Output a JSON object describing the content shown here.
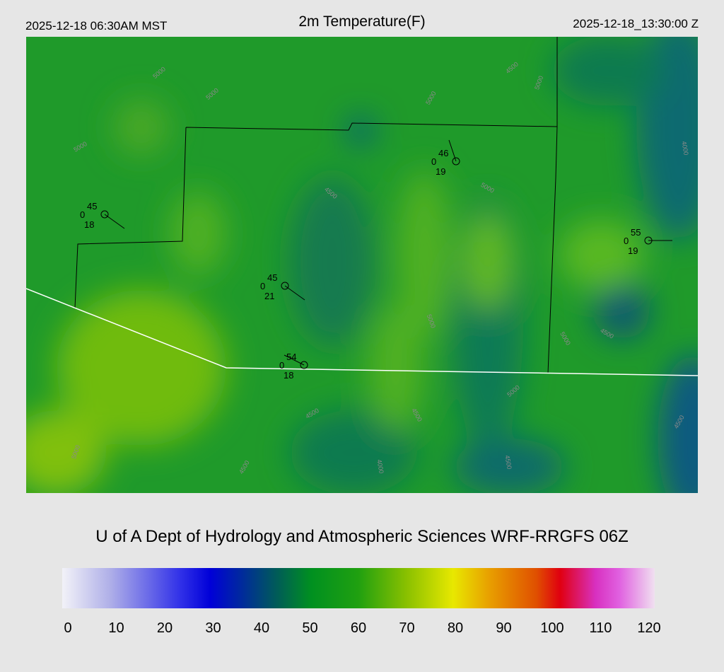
{
  "header": {
    "left": "2025-12-18 06:30AM MST",
    "title": "2m Temperature(F)",
    "right": "2025-12-18_13:30:00 Z"
  },
  "stations": [
    {
      "temperature": "45",
      "pressure": "0",
      "dewpoint": "18"
    },
    {
      "temperature": "45",
      "pressure": "0",
      "dewpoint": "21"
    },
    {
      "temperature": "54",
      "pressure": "0",
      "dewpoint": "18"
    },
    {
      "temperature": "46",
      "pressure": "0",
      "dewpoint": "19"
    },
    {
      "temperature": "55",
      "pressure": "0",
      "dewpoint": "19"
    }
  ],
  "contour_labels": [
    "5000",
    "5000",
    "5000",
    "4500",
    "5000",
    "5000",
    "4500",
    "5000",
    "5000",
    "5000",
    "4500",
    "4000",
    "4500",
    "4500",
    "4500",
    "5000",
    "5000",
    "4500",
    "4000",
    "4500"
  ],
  "credit": "U of A Dept of Hydrology and Atmospheric Sciences WRF-RRGFS 06Z",
  "colorbar": {
    "lim": [
      0,
      120
    ],
    "ticks": [
      0,
      10,
      20,
      30,
      40,
      50,
      60,
      70,
      80,
      90,
      100,
      110,
      120
    ]
  }
}
